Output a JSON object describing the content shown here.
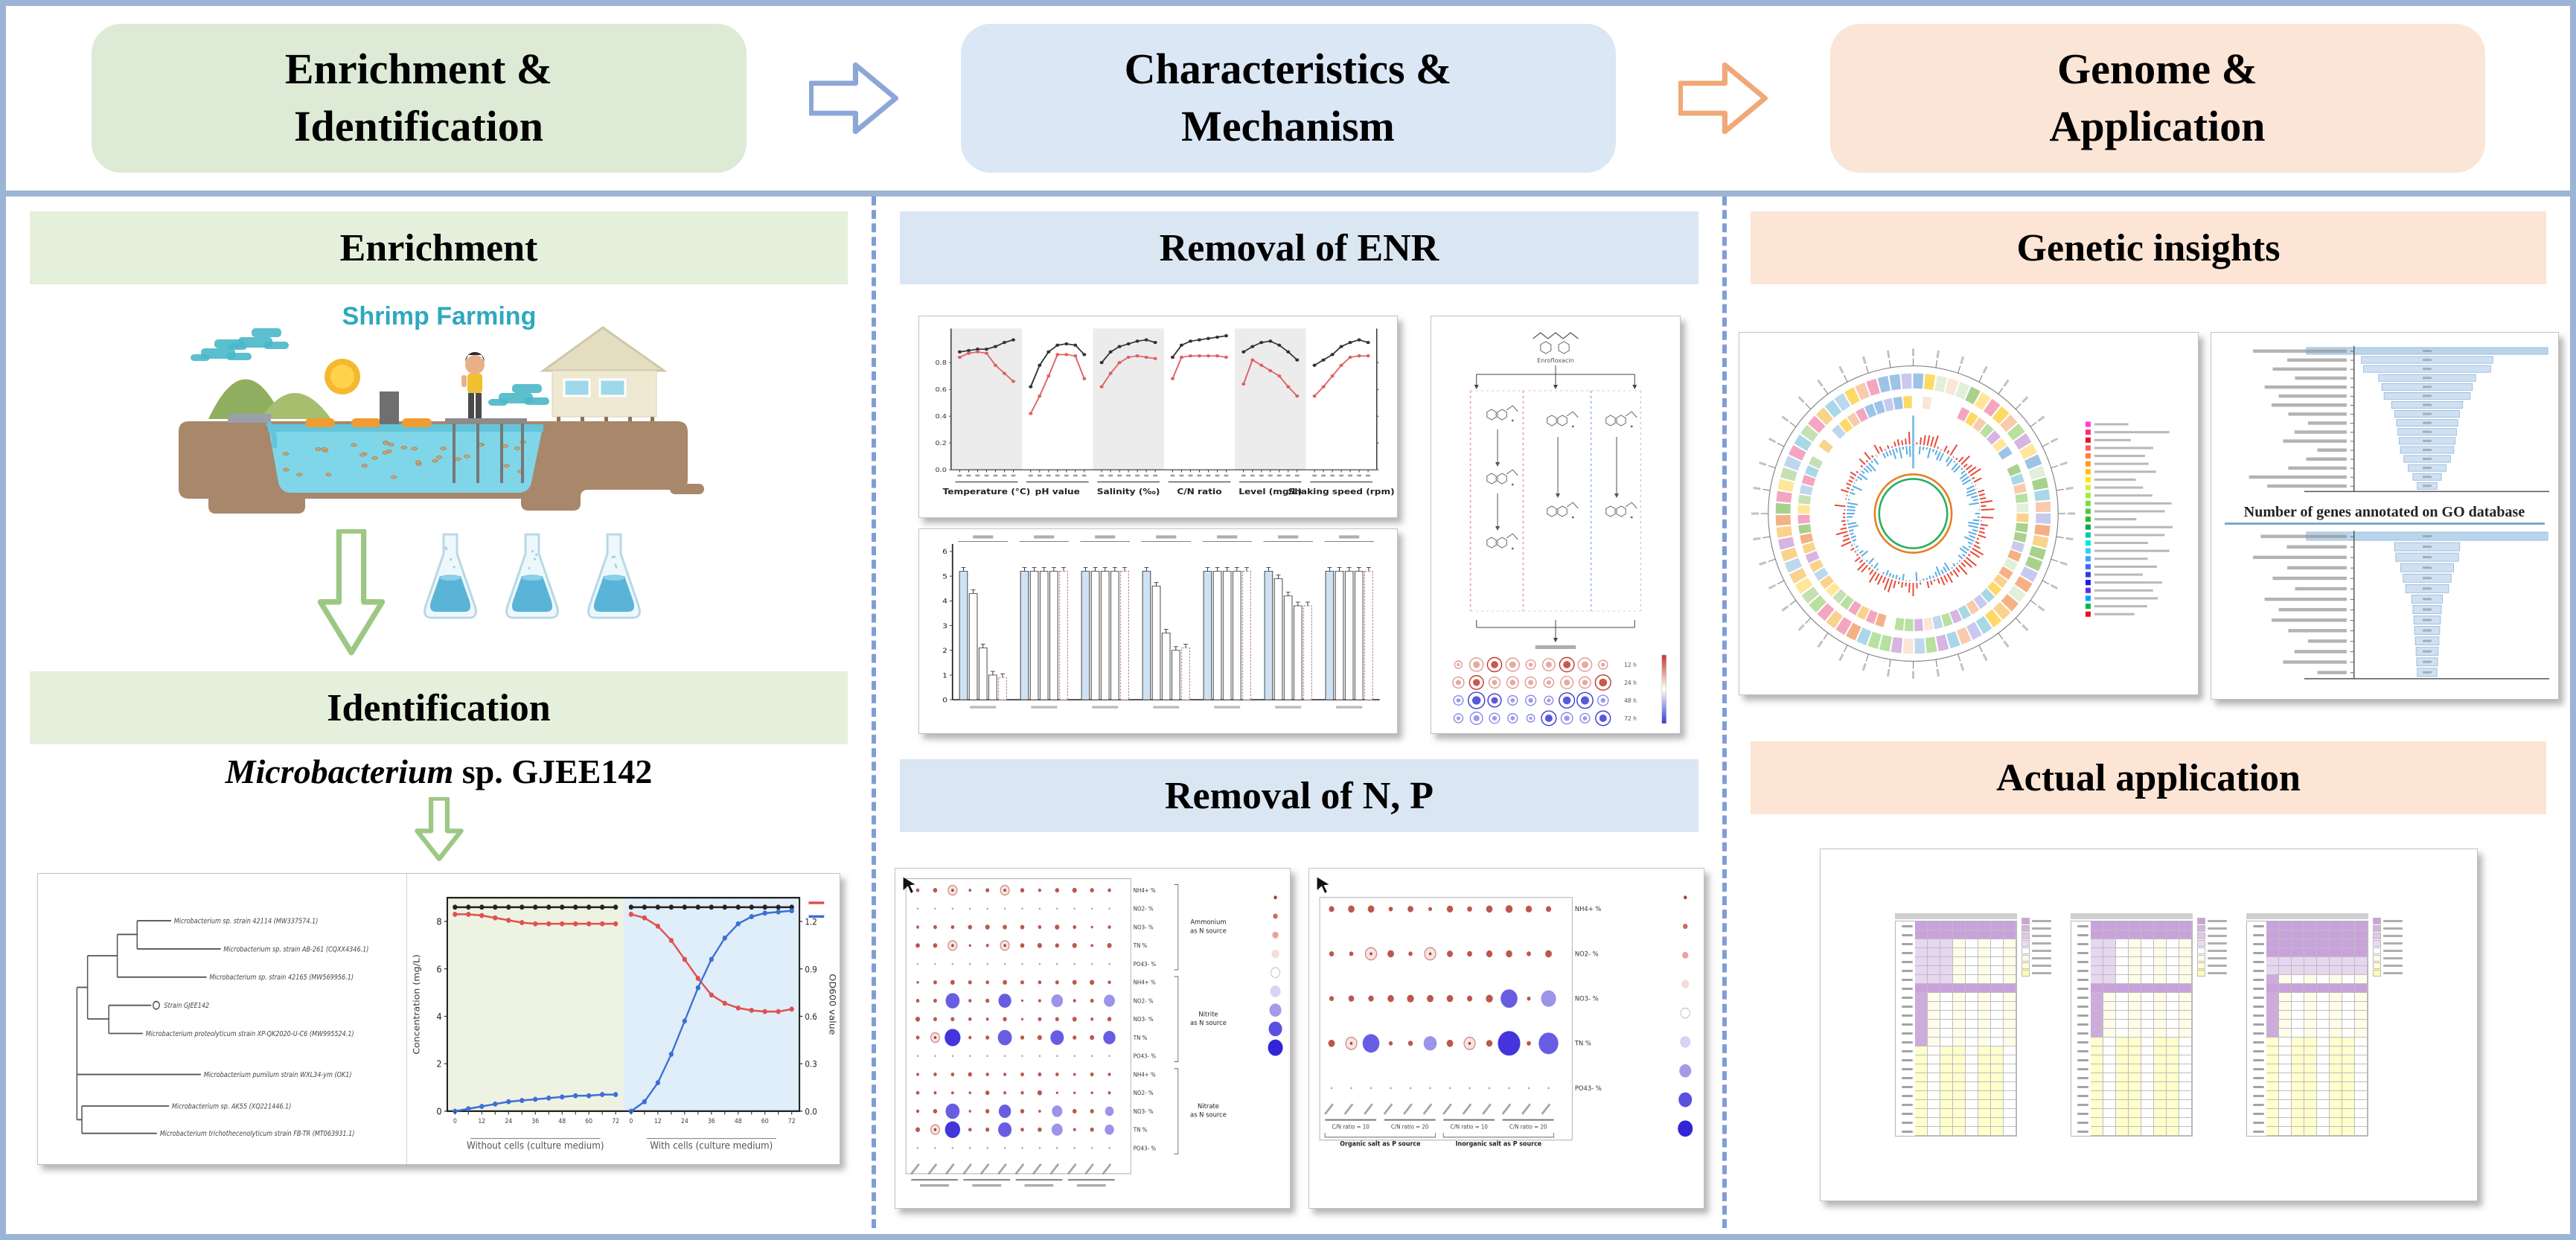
{
  "accent_colors": {
    "frame_border": "#9cb4d6",
    "column_dash": "#7f9fd4",
    "step_green": "#dcead6",
    "step_blue": "#dbe7f4",
    "step_peach": "#fbe5d6",
    "band_green": "#e4f0dc",
    "band_blue": "#dbe6f3",
    "band_peach": "#fce5d5",
    "arrow_blue": "#8ca6d8",
    "arrow_orange": "#f0a878",
    "arrow_green": "#9dc884",
    "illustration_title_teal": "#2fa8bf"
  },
  "banner": {
    "steps": [
      {
        "line1": "Enrichment &",
        "line2": "Identification"
      },
      {
        "line1": "Characteristics &",
        "line2": "Mechanism"
      },
      {
        "line1": "Genome &",
        "line2": "Application"
      }
    ]
  },
  "left": {
    "header_enrichment": "Enrichment",
    "illustration_title": "Shrimp Farming",
    "header_identification": "Identification",
    "species_italic": "Microbacterium",
    "species_rest": " sp. GJEE142",
    "tree_taxa": [
      "Microbacterium sp. strain 42114 (MW337574.1)",
      "Microbacterium sp. strain AB-261 (CQXX4346.1)",
      "Microbacterium sp. strain 42165 (MW569956.1)",
      "Strain GJEE142",
      "Microbacterium proteolyticum strain XP-QK2020-U-C6 (MW995524.1)",
      "Microbacterium pumilum strain WXL34-ym (OK1)",
      "Microbacterium sp. AK55 (XQ221446.1)",
      "Microbacterium trichothecenolyticum strain FB-TR (MT063931.1)"
    ]
  },
  "middle": {
    "header_enr": "Removal of ENR",
    "header_np": "Removal of N, P",
    "pathway": {
      "top_label": "Enrofloxacin",
      "time_labels": [
        "12 h",
        "24 h",
        "48 h",
        "72 h"
      ]
    }
  },
  "right": {
    "header_genetic": "Genetic insights",
    "header_application": "Actual application"
  },
  "chart_data": [
    {
      "id": "growth",
      "type": "line",
      "ylabel_left": "Concentration (mg/L)",
      "ylabel_right": "OD600 value",
      "x_caption_left": "Without cells (culture medium)",
      "x_caption_right": "With cells (culture medium)",
      "yticks_left": [
        0,
        2,
        4,
        6,
        8
      ],
      "yticks_right": [
        0.0,
        0.3,
        0.6,
        0.9,
        1.2
      ],
      "xticks": [
        0,
        12,
        24,
        36,
        48,
        60,
        72
      ],
      "left": {
        "red": [
          8.3,
          8.3,
          8.25,
          8.15,
          8.05,
          7.95,
          7.9,
          7.9,
          7.9,
          7.9,
          7.9,
          7.9,
          7.9
        ],
        "blue": [
          0,
          0.1,
          0.2,
          0.3,
          0.4,
          0.45,
          0.5,
          0.55,
          0.6,
          0.65,
          0.65,
          0.7,
          0.7
        ],
        "black": 8.6
      },
      "right": {
        "red": [
          8.3,
          8.15,
          7.8,
          7.2,
          6.4,
          5.6,
          4.9,
          4.55,
          4.35,
          4.25,
          4.2,
          4.2,
          4.3
        ],
        "blue": [
          0,
          0.4,
          1.2,
          2.4,
          3.8,
          5.2,
          6.4,
          7.3,
          7.9,
          8.2,
          8.35,
          8.4,
          8.45
        ],
        "black": 8.6
      }
    },
    {
      "id": "enr-conditions",
      "type": "line",
      "groups": [
        "Temperature (°C)",
        "pH value",
        "Salinity (‰)",
        "C/N ratio",
        "Level (mg/L)",
        "Shaking speed (rpm)"
      ],
      "ylim": [
        0,
        1
      ],
      "yticks": [
        0.0,
        0.2,
        0.4,
        0.6,
        0.8
      ],
      "series": [
        {
          "name": "removal-black",
          "color": "#333333",
          "values": [
            [
              0.88,
              0.89,
              0.9,
              0.9,
              0.92,
              0.95,
              0.97
            ],
            [
              0.62,
              0.78,
              0.88,
              0.93,
              0.94,
              0.93,
              0.86
            ],
            [
              0.8,
              0.88,
              0.92,
              0.94,
              0.96,
              0.97,
              0.95
            ],
            [
              0.84,
              0.93,
              0.96,
              0.97,
              0.98,
              0.99,
              1.0
            ],
            [
              0.88,
              0.92,
              0.95,
              0.96,
              0.93,
              0.88,
              0.82
            ],
            [
              0.78,
              0.82,
              0.86,
              0.92,
              0.95,
              0.97,
              0.95
            ]
          ]
        },
        {
          "name": "removal-red",
          "color": "#e06060",
          "values": [
            [
              0.84,
              0.87,
              0.88,
              0.87,
              0.78,
              0.72,
              0.66
            ],
            [
              0.42,
              0.55,
              0.7,
              0.86,
              0.86,
              0.85,
              0.68
            ],
            [
              0.62,
              0.72,
              0.8,
              0.84,
              0.85,
              0.84,
              0.83
            ],
            [
              0.68,
              0.84,
              0.85,
              0.85,
              0.85,
              0.85,
              0.84
            ],
            [
              0.64,
              0.82,
              0.78,
              0.74,
              0.7,
              0.62,
              0.55
            ],
            [
              0.55,
              0.62,
              0.7,
              0.78,
              0.84,
              0.85,
              0.85
            ]
          ]
        }
      ]
    },
    {
      "id": "enr-bars",
      "type": "bar",
      "ylim": [
        0,
        6
      ],
      "yticks": [
        0,
        1,
        2,
        3,
        4,
        5,
        6
      ],
      "groups": [
        [
          5.2,
          4.3,
          2.1,
          1.0,
          0.9
        ],
        [
          5.2,
          5.2,
          5.2,
          5.2,
          5.2
        ],
        [
          5.2,
          5.2,
          5.2,
          5.2,
          5.2
        ],
        [
          5.2,
          4.6,
          2.7,
          2.0,
          2.1
        ],
        [
          5.2,
          5.2,
          5.2,
          5.2,
          5.2
        ],
        [
          5.2,
          4.9,
          4.2,
          3.8,
          3.8
        ],
        [
          5.2,
          5.2,
          5.2,
          5.2,
          5.2
        ]
      ]
    },
    {
      "id": "go-funnels",
      "type": "bar",
      "title": "Number of genes annotated on GO database",
      "top_values": [
        560,
        305,
        295,
        225,
        210,
        200,
        165,
        150,
        142,
        136,
        130,
        124,
        108,
        88,
        66,
        46
      ],
      "bottom_values": [
        980,
        265,
        255,
        215,
        195,
        175,
        125,
        115,
        108,
        102,
        96,
        90,
        85,
        80
      ]
    },
    {
      "id": "np-bubble-a",
      "type": "scatter",
      "cols": 12,
      "row_labels": [
        "NH4+ %",
        "NO2- %",
        "NO3- %",
        "TN %",
        "PO43- %",
        "NH4+ %",
        "NO2- %",
        "NO3- %",
        "TN %",
        "PO43- %",
        "NH4+ %",
        "NO2- %",
        "NO3- %",
        "TN %",
        "PO43- %"
      ],
      "groups": [
        {
          "label1": "Ammonium",
          "label2": "as N source",
          "rows": [
            1,
            5
          ]
        },
        {
          "label1": "Nitrite",
          "label2": "as N source",
          "rows": [
            6,
            10
          ]
        },
        {
          "label1": "Nitrate",
          "label2": "as N source",
          "rows": [
            11,
            15
          ]
        }
      ],
      "faint_rows": [
        2,
        5,
        10,
        15
      ],
      "ring_cells": [
        [
          1,
          3
        ],
        [
          1,
          6
        ],
        [
          4,
          3
        ],
        [
          4,
          6
        ],
        [
          9,
          2
        ],
        [
          14,
          2
        ]
      ],
      "blue_cells": [
        [
          7,
          3,
          0.85
        ],
        [
          7,
          6,
          0.75
        ],
        [
          7,
          9,
          0.65
        ],
        [
          7,
          12,
          0.6
        ],
        [
          9,
          3,
          1.0
        ],
        [
          9,
          6,
          0.85
        ],
        [
          9,
          9,
          0.8
        ],
        [
          9,
          12,
          0.7
        ],
        [
          13,
          3,
          0.85
        ],
        [
          13,
          6,
          0.7
        ],
        [
          13,
          9,
          0.55
        ],
        [
          13,
          12,
          0.4
        ],
        [
          14,
          3,
          0.95
        ],
        [
          14,
          6,
          0.8
        ],
        [
          14,
          9,
          0.6
        ],
        [
          14,
          12,
          0.45
        ]
      ]
    },
    {
      "id": "np-bubble-b",
      "type": "scatter",
      "cols": 12,
      "row_labels": [
        "NH4+ %",
        "NO2- %",
        "NO3- %",
        "TN %",
        "PO43- %"
      ],
      "sub_captions": [
        "C/N ratio = 10",
        "C/N ratio = 20",
        "C/N ratio = 10",
        "C/N ratio = 20"
      ],
      "group_captions": [
        "Organic salt as P source",
        "Inorganic salt as P source"
      ],
      "faint_rows": [
        5
      ],
      "ring_cells": [
        [
          2,
          3
        ],
        [
          2,
          6
        ],
        [
          4,
          2
        ],
        [
          4,
          8
        ]
      ],
      "blue_cells": [
        [
          3,
          10,
          0.7
        ],
        [
          3,
          12,
          0.6
        ],
        [
          4,
          3,
          0.7
        ],
        [
          4,
          6,
          0.5
        ],
        [
          4,
          10,
          1.0
        ],
        [
          4,
          12,
          0.85
        ]
      ]
    },
    {
      "id": "application-heatmaps",
      "type": "heatmap",
      "tables": 3,
      "rows": 24,
      "cols": 8,
      "purple_hex": "#c9a2dc",
      "yellow_hex": "#ffffcc",
      "patterns": [
        {
          "purple_rows": [
            0,
            1,
            7
          ],
          "col0_purple_until": 13,
          "block": {
            "r0": 2,
            "r1": 6,
            "c0": 0,
            "c1": 2
          }
        },
        {
          "purple_rows": [
            0,
            1,
            7
          ],
          "col0_purple_until": 12,
          "block": {
            "r0": 2,
            "r1": 6,
            "c0": 0,
            "c1": 1
          }
        },
        {
          "purple_rows": [
            0,
            1,
            2,
            3,
            7
          ],
          "col0_purple_until": 12,
          "block": {
            "r0": 0,
            "r1": 5,
            "c0": 0,
            "c1": 7
          }
        }
      ]
    },
    {
      "id": "genome-map",
      "type": "circular-genome",
      "ring_palette": [
        "#f4a6c0",
        "#b8e0a0",
        "#f9d38c",
        "#a8d8e8",
        "#d8b4e2",
        "#f4b183",
        "#c6e0b4",
        "#ffe699",
        "#9dc3e6",
        "#f8cbad",
        "#e2efda",
        "#ffd966",
        "#bdd7ee",
        "#fbe5d6",
        "#c9c9f0",
        "#a9d18e"
      ],
      "legend_colors": [
        "#ff3ec9",
        "#ff2a7f",
        "#e8112d",
        "#ff5c5c",
        "#ff7f3f",
        "#ff9a1f",
        "#ffc300",
        "#ffe800",
        "#d4f03a",
        "#a8e83a",
        "#7ddc3a",
        "#4fc93a",
        "#2eb82e",
        "#0fa84f",
        "#00c9a7",
        "#00e5e5",
        "#35c9ff",
        "#3aa0ff",
        "#3a6bff",
        "#2a3fd4",
        "#1a1ae8",
        "#5c2ee8",
        "#00a2ff",
        "#00b850",
        "#e81123"
      ]
    }
  ]
}
